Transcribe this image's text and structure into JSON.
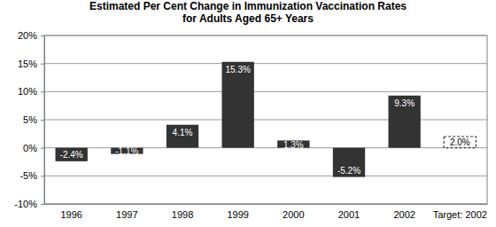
{
  "chart_data": {
    "type": "bar",
    "title": "Estimated Per Cent Change in Immunization Vaccination Rates\nfor Adults Aged 65+ Years",
    "categories": [
      "1996",
      "1997",
      "1998",
      "1999",
      "2000",
      "2001",
      "2002",
      "Target: 2002"
    ],
    "values": [
      -2.4,
      -1.1,
      4.1,
      15.3,
      1.3,
      -5.2,
      9.3,
      2.0
    ],
    "value_labels": [
      "-2.4%",
      "-1.1%",
      "4.1%",
      "15.3%",
      "1.3%",
      "-5.2%",
      "9.3%",
      "2.0%"
    ],
    "colors": [
      "#333333",
      "#333333",
      "#333333",
      "#333333",
      "#333333",
      "#333333",
      "#333333",
      "#ffffff"
    ],
    "ylim": [
      -10,
      20
    ],
    "yticks": [
      {
        "value": -10,
        "label": "-10%"
      },
      {
        "value": -5,
        "label": "-5%"
      },
      {
        "value": 0,
        "label": "0%"
      },
      {
        "value": 5,
        "label": "5%"
      },
      {
        "value": 10,
        "label": "10%"
      },
      {
        "value": 15,
        "label": "15%"
      },
      {
        "value": 20,
        "label": "20%"
      }
    ],
    "grid": true,
    "data_labels": true
  }
}
